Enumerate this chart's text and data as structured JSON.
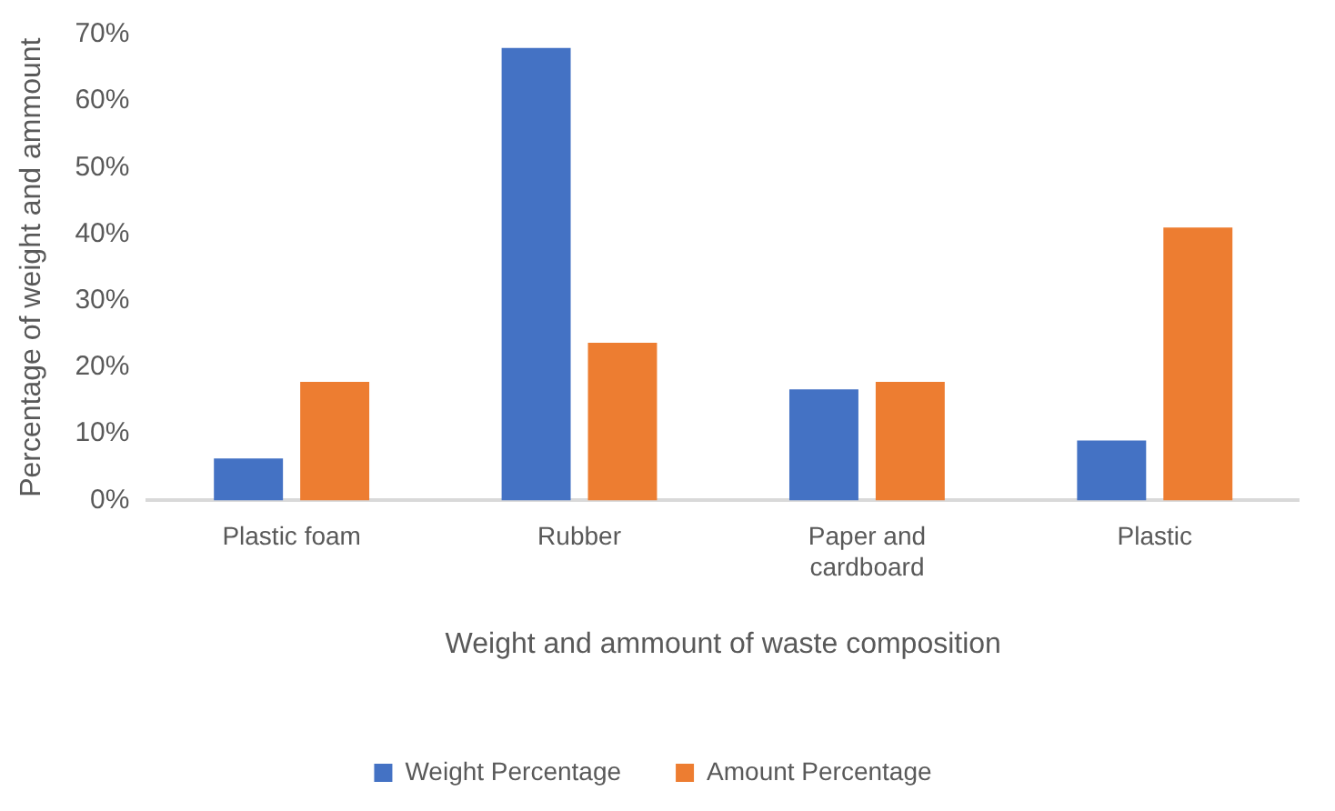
{
  "chart_data": {
    "type": "bar",
    "xlabel": "Weight and ammount of waste composition",
    "ylabel": "Percentage of weight and ammount",
    "categories": [
      "Plastic foam",
      "Rubber",
      "Paper and cardboard",
      "Plastic"
    ],
    "series": [
      {
        "name": "Weight Percentage",
        "color": "#4472c4",
        "values": [
          6.3,
          68,
          16.7,
          9
        ]
      },
      {
        "name": "Amount Percentage",
        "color": "#ed7d31",
        "values": [
          17.8,
          23.7,
          17.8,
          41
        ]
      }
    ],
    "ylim": [
      0,
      70
    ],
    "yticks": [
      {
        "value": 0,
        "label": "0%"
      },
      {
        "value": 10,
        "label": "10%"
      },
      {
        "value": 20,
        "label": "20%"
      },
      {
        "value": 30,
        "label": "30%"
      },
      {
        "value": 40,
        "label": "40%"
      },
      {
        "value": 50,
        "label": "50%"
      },
      {
        "value": 60,
        "label": "60%"
      },
      {
        "value": 70,
        "label": "70%"
      }
    ],
    "grid": false,
    "legend": "bottom"
  }
}
